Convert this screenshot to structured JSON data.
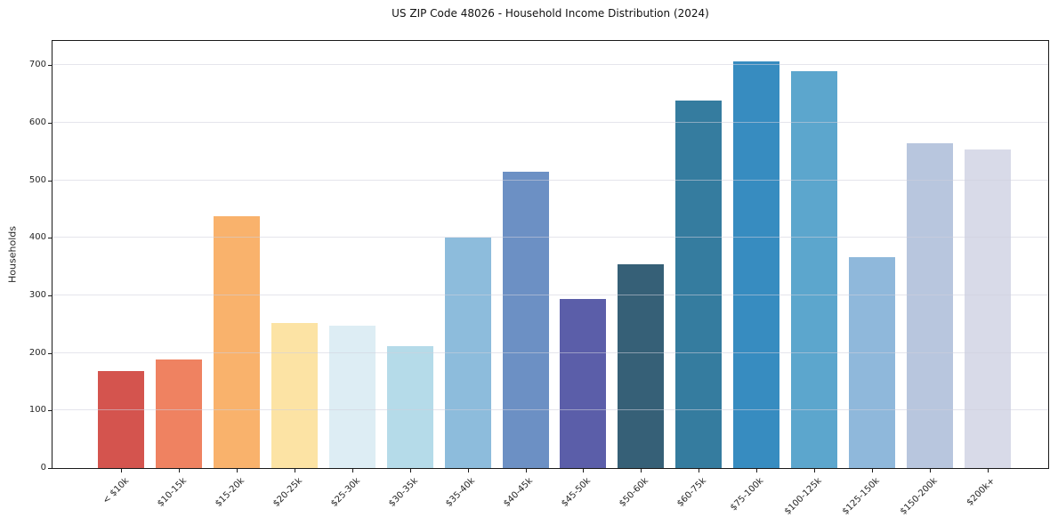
{
  "chart_data": {
    "type": "bar",
    "title": "US ZIP Code 48026 - Household Income Distribution (2024)",
    "xlabel": "",
    "ylabel": "Households",
    "categories": [
      "< $10k",
      "$10-15k",
      "$15-20k",
      "$20-25k",
      "$25-30k",
      "$30-35k",
      "$35-40k",
      "$40-45k",
      "$45-50k",
      "$50-60k",
      "$60-75k",
      "$75-100k",
      "$100-125k",
      "$125-150k",
      "$150-200k",
      "$200k+"
    ],
    "values": [
      169,
      189,
      438,
      252,
      248,
      212,
      401,
      515,
      293,
      354,
      638,
      706,
      689,
      366,
      564,
      553
    ],
    "bar_colors": [
      "#d4544e",
      "#ef8261",
      "#f9b26c",
      "#fce3a4",
      "#ddedf4",
      "#b5dbe9",
      "#8dbcdc",
      "#6c90c4",
      "#5b5ea9",
      "#366077",
      "#357c9f",
      "#378cc0",
      "#5ca6cd",
      "#8fb8db",
      "#b8c6de",
      "#d8dae8"
    ],
    "yticks": [
      0,
      100,
      200,
      300,
      400,
      500,
      600,
      700
    ],
    "ylim": [
      0,
      742
    ],
    "grid": "horizontal-only",
    "legend": "none",
    "background_color": "#ffffff",
    "axis_color": "#1a1a1a",
    "grid_color": "#e6e6ec"
  }
}
